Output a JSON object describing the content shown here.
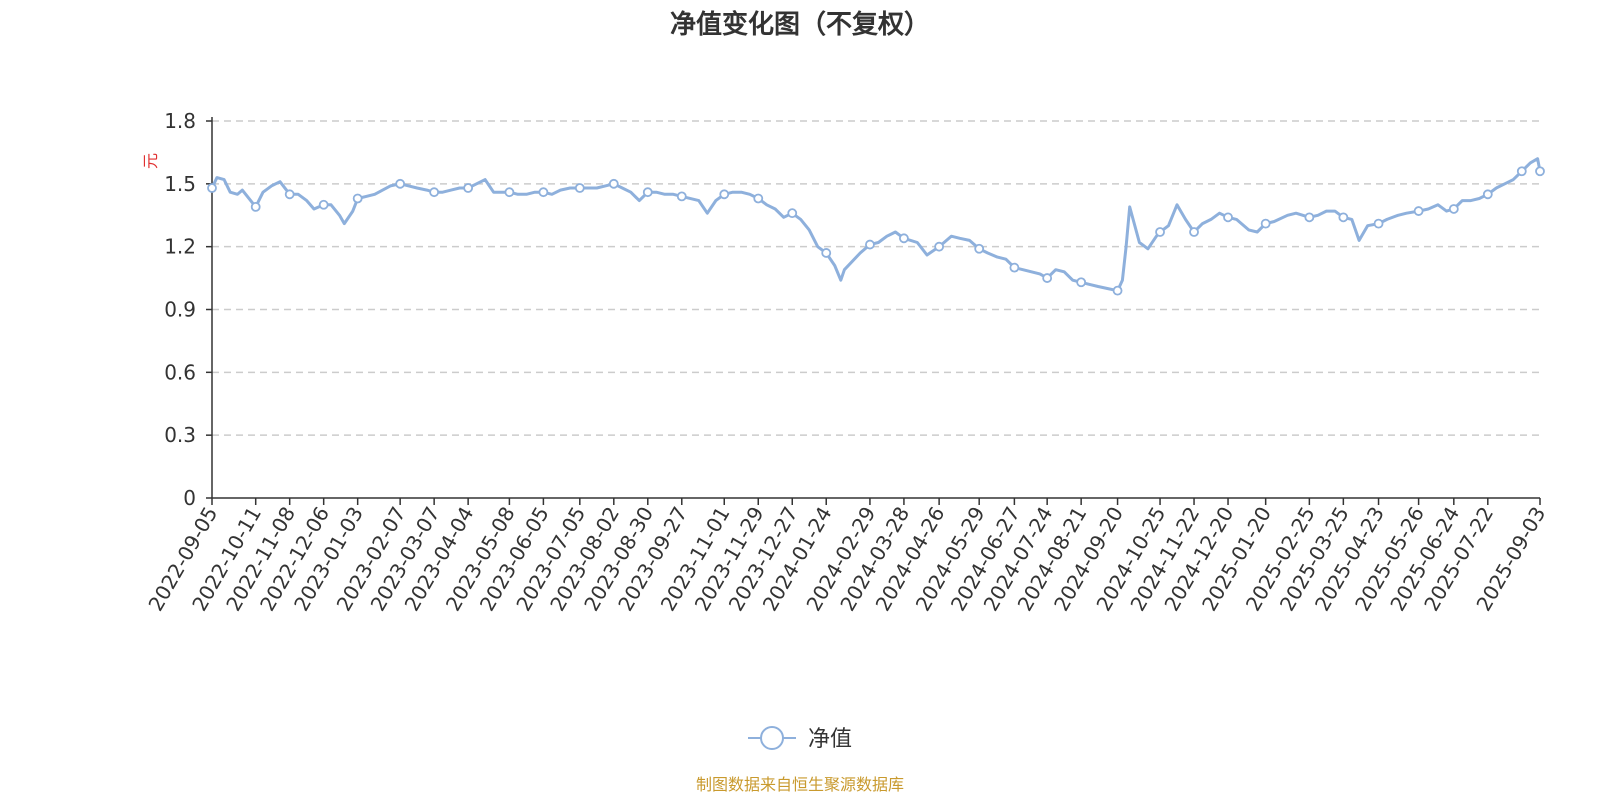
{
  "colors": {
    "series": "#8eb0dc",
    "grid": "#cccccc",
    "axis": "#333333",
    "source": "#c99a2e",
    "unit": "#e03030"
  },
  "legend": {
    "label": "净值",
    "icon": "circle-line-icon"
  },
  "source": "制图数据来自恒生聚源数据库",
  "chart_data": {
    "type": "line",
    "title": "净值变化图（不复权）",
    "ylabel": "元",
    "xlabel": "",
    "ylim": [
      0,
      1.8
    ],
    "yticks": [
      "0",
      "0.3",
      "0.6",
      "0.9",
      "1.2",
      "1.5",
      "1.8"
    ],
    "grid": true,
    "legend_position": "bottom-center",
    "x_tick_labels": [
      "2022-09-05",
      "2022-10-11",
      "2022-11-08",
      "2022-12-06",
      "2023-01-03",
      "2023-02-07",
      "2023-03-07",
      "2023-04-04",
      "2023-05-08",
      "2023-06-05",
      "2023-07-05",
      "2023-08-02",
      "2023-08-30",
      "2023-09-27",
      "2023-11-01",
      "2023-11-29",
      "2023-12-27",
      "2024-01-24",
      "2024-02-29",
      "2024-03-28",
      "2024-04-26",
      "2024-05-29",
      "2024-06-27",
      "2024-07-24",
      "2024-08-21",
      "2024-09-20",
      "2024-10-25",
      "2024-11-22",
      "2024-12-20",
      "2025-01-20",
      "2025-02-25",
      "2025-03-25",
      "2025-04-23",
      "2025-05-26",
      "2025-06-24",
      "2025-07-22",
      "2025-09-03"
    ],
    "series": [
      {
        "name": "净值",
        "points": [
          [
            "2022-09-05",
            1.48
          ],
          [
            "2022-09-09",
            1.53
          ],
          [
            "2022-09-15",
            1.52
          ],
          [
            "2022-09-20",
            1.46
          ],
          [
            "2022-09-26",
            1.45
          ],
          [
            "2022-09-30",
            1.47
          ],
          [
            "2022-10-11",
            1.39
          ],
          [
            "2022-10-17",
            1.46
          ],
          [
            "2022-10-24",
            1.49
          ],
          [
            "2022-10-31",
            1.51
          ],
          [
            "2022-11-08",
            1.45
          ],
          [
            "2022-11-15",
            1.45
          ],
          [
            "2022-11-22",
            1.42
          ],
          [
            "2022-11-28",
            1.38
          ],
          [
            "2022-12-06",
            1.4
          ],
          [
            "2022-12-12",
            1.4
          ],
          [
            "2022-12-19",
            1.35
          ],
          [
            "2022-12-23",
            1.31
          ],
          [
            "2022-12-30",
            1.37
          ],
          [
            "2023-01-03",
            1.43
          ],
          [
            "2023-01-10",
            1.44
          ],
          [
            "2023-01-17",
            1.45
          ],
          [
            "2023-01-30",
            1.49
          ],
          [
            "2023-02-07",
            1.5
          ],
          [
            "2023-02-14",
            1.49
          ],
          [
            "2023-02-21",
            1.48
          ],
          [
            "2023-03-01",
            1.47
          ],
          [
            "2023-03-07",
            1.46
          ],
          [
            "2023-03-14",
            1.46
          ],
          [
            "2023-03-21",
            1.47
          ],
          [
            "2023-03-28",
            1.48
          ],
          [
            "2023-04-04",
            1.48
          ],
          [
            "2023-04-11",
            1.5
          ],
          [
            "2023-04-18",
            1.52
          ],
          [
            "2023-04-25",
            1.46
          ],
          [
            "2023-05-08",
            1.46
          ],
          [
            "2023-05-15",
            1.45
          ],
          [
            "2023-05-22",
            1.45
          ],
          [
            "2023-05-29",
            1.46
          ],
          [
            "2023-06-05",
            1.46
          ],
          [
            "2023-06-12",
            1.45
          ],
          [
            "2023-06-19",
            1.47
          ],
          [
            "2023-06-27",
            1.48
          ],
          [
            "2023-07-05",
            1.48
          ],
          [
            "2023-07-12",
            1.48
          ],
          [
            "2023-07-19",
            1.48
          ],
          [
            "2023-07-26",
            1.49
          ],
          [
            "2023-08-02",
            1.5
          ],
          [
            "2023-08-09",
            1.48
          ],
          [
            "2023-08-16",
            1.46
          ],
          [
            "2023-08-23",
            1.42
          ],
          [
            "2023-08-30",
            1.46
          ],
          [
            "2023-09-06",
            1.46
          ],
          [
            "2023-09-13",
            1.45
          ],
          [
            "2023-09-20",
            1.45
          ],
          [
            "2023-09-27",
            1.44
          ],
          [
            "2023-10-11",
            1.42
          ],
          [
            "2023-10-18",
            1.36
          ],
          [
            "2023-10-25",
            1.42
          ],
          [
            "2023-11-01",
            1.45
          ],
          [
            "2023-11-08",
            1.46
          ],
          [
            "2023-11-15",
            1.46
          ],
          [
            "2023-11-22",
            1.45
          ],
          [
            "2023-11-29",
            1.43
          ],
          [
            "2023-12-06",
            1.4
          ],
          [
            "2023-12-13",
            1.38
          ],
          [
            "2023-12-20",
            1.34
          ],
          [
            "2023-12-27",
            1.36
          ],
          [
            "2024-01-03",
            1.33
          ],
          [
            "2024-01-10",
            1.28
          ],
          [
            "2024-01-17",
            1.2
          ],
          [
            "2024-01-24",
            1.17
          ],
          [
            "2024-01-31",
            1.11
          ],
          [
            "2024-02-05",
            1.04
          ],
          [
            "2024-02-08",
            1.09
          ],
          [
            "2024-02-21",
            1.17
          ],
          [
            "2024-02-29",
            1.21
          ],
          [
            "2024-03-07",
            1.22
          ],
          [
            "2024-03-14",
            1.25
          ],
          [
            "2024-03-21",
            1.27
          ],
          [
            "2024-03-28",
            1.24
          ],
          [
            "2024-04-08",
            1.22
          ],
          [
            "2024-04-16",
            1.16
          ],
          [
            "2024-04-26",
            1.2
          ],
          [
            "2024-05-06",
            1.25
          ],
          [
            "2024-05-13",
            1.24
          ],
          [
            "2024-05-21",
            1.23
          ],
          [
            "2024-05-29",
            1.19
          ],
          [
            "2024-06-05",
            1.17
          ],
          [
            "2024-06-13",
            1.15
          ],
          [
            "2024-06-20",
            1.14
          ],
          [
            "2024-06-27",
            1.1
          ],
          [
            "2024-07-04",
            1.09
          ],
          [
            "2024-07-11",
            1.08
          ],
          [
            "2024-07-18",
            1.07
          ],
          [
            "2024-07-24",
            1.05
          ],
          [
            "2024-07-31",
            1.09
          ],
          [
            "2024-08-07",
            1.08
          ],
          [
            "2024-08-14",
            1.04
          ],
          [
            "2024-08-21",
            1.03
          ],
          [
            "2024-08-28",
            1.02
          ],
          [
            "2024-09-04",
            1.01
          ],
          [
            "2024-09-12",
            1.0
          ],
          [
            "2024-09-20",
            0.99
          ],
          [
            "2024-09-24",
            1.04
          ],
          [
            "2024-09-27",
            1.2
          ],
          [
            "2024-09-30",
            1.39
          ],
          [
            "2024-10-08",
            1.22
          ],
          [
            "2024-10-15",
            1.19
          ],
          [
            "2024-10-22",
            1.25
          ],
          [
            "2024-10-25",
            1.27
          ],
          [
            "2024-11-01",
            1.3
          ],
          [
            "2024-11-08",
            1.4
          ],
          [
            "2024-11-15",
            1.33
          ],
          [
            "2024-11-22",
            1.27
          ],
          [
            "2024-11-29",
            1.31
          ],
          [
            "2024-12-06",
            1.33
          ],
          [
            "2024-12-13",
            1.36
          ],
          [
            "2024-12-20",
            1.34
          ],
          [
            "2024-12-27",
            1.33
          ],
          [
            "2025-01-06",
            1.28
          ],
          [
            "2025-01-13",
            1.27
          ],
          [
            "2025-01-20",
            1.31
          ],
          [
            "2025-01-27",
            1.32
          ],
          [
            "2025-02-07",
            1.35
          ],
          [
            "2025-02-14",
            1.36
          ],
          [
            "2025-02-25",
            1.34
          ],
          [
            "2025-03-04",
            1.35
          ],
          [
            "2025-03-11",
            1.37
          ],
          [
            "2025-03-18",
            1.37
          ],
          [
            "2025-03-25",
            1.34
          ],
          [
            "2025-04-01",
            1.33
          ],
          [
            "2025-04-07",
            1.23
          ],
          [
            "2025-04-14",
            1.3
          ],
          [
            "2025-04-23",
            1.31
          ],
          [
            "2025-04-30",
            1.33
          ],
          [
            "2025-05-09",
            1.35
          ],
          [
            "2025-05-16",
            1.36
          ],
          [
            "2025-05-26",
            1.37
          ],
          [
            "2025-06-03",
            1.38
          ],
          [
            "2025-06-11",
            1.4
          ],
          [
            "2025-06-18",
            1.37
          ],
          [
            "2025-06-24",
            1.38
          ],
          [
            "2025-07-01",
            1.42
          ],
          [
            "2025-07-08",
            1.42
          ],
          [
            "2025-07-15",
            1.43
          ],
          [
            "2025-07-22",
            1.45
          ],
          [
            "2025-07-29",
            1.48
          ],
          [
            "2025-08-05",
            1.5
          ],
          [
            "2025-08-12",
            1.52
          ],
          [
            "2025-08-19",
            1.56
          ],
          [
            "2025-08-26",
            1.6
          ],
          [
            "2025-09-01",
            1.62
          ],
          [
            "2025-09-03",
            1.56
          ]
        ],
        "markers": [
          "2022-09-05",
          "2022-10-11",
          "2022-11-08",
          "2022-12-06",
          "2023-01-03",
          "2023-02-07",
          "2023-03-07",
          "2023-04-04",
          "2023-05-08",
          "2023-06-05",
          "2023-07-05",
          "2023-08-02",
          "2023-08-30",
          "2023-09-27",
          "2023-11-01",
          "2023-11-29",
          "2023-12-27",
          "2024-01-24",
          "2024-02-29",
          "2024-03-28",
          "2024-04-26",
          "2024-05-29",
          "2024-06-27",
          "2024-07-24",
          "2024-08-21",
          "2024-09-20",
          "2024-10-25",
          "2024-11-22",
          "2024-12-20",
          "2025-01-20",
          "2025-02-25",
          "2025-03-25",
          "2025-04-23",
          "2025-05-26",
          "2025-06-24",
          "2025-07-22",
          "2025-08-19",
          "2025-09-03"
        ]
      }
    ]
  }
}
